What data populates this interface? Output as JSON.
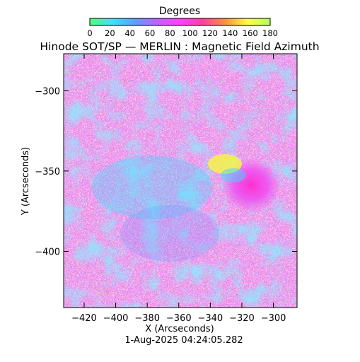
{
  "colorbar": {
    "title": "Degrees",
    "ticks": [
      0,
      20,
      40,
      60,
      80,
      100,
      120,
      140,
      160,
      180
    ]
  },
  "chart_data": {
    "type": "heatmap",
    "title": "Hinode SOT/SP — MERLIN : Magnetic Field Azimuth",
    "xlabel": "X (Arcseconds)",
    "ylabel": "Y (Arcseconds)",
    "xlim": [
      -433,
      -285
    ],
    "ylim": [
      -435,
      -277
    ],
    "x_ticks": [
      -420,
      -400,
      -380,
      -360,
      -340,
      -320,
      -300
    ],
    "y_ticks": [
      -300,
      -350,
      -400
    ],
    "value_range": [
      0,
      180
    ],
    "value_unit": "Degrees",
    "colormap": [
      "#50ff78",
      "#40e0ff",
      "#5aa0ff",
      "#c060ff",
      "#ff40ff",
      "#ff40a0",
      "#ff9040",
      "#ffff40",
      "#b0ff60"
    ],
    "background_color": "#c8a8e8",
    "region_colors": {
      "cyan": "#40d8ff",
      "blue": "#7090ff",
      "magenta": "#f050f0",
      "yellow": "#f8f840"
    }
  },
  "footer": {
    "timestamp": "1-Aug-2025 04:24:05.282"
  }
}
